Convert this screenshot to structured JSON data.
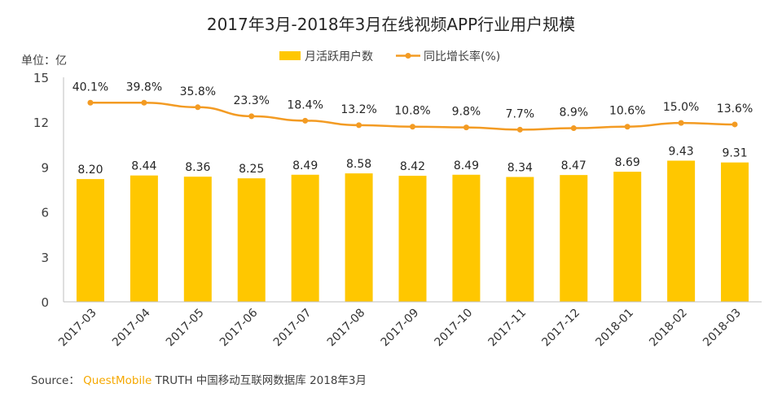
{
  "chart_data": {
    "type": "bar",
    "title": "2017年3月-2018年3月在线视频APP行业用户规模",
    "unit_label": "单位：亿",
    "categories": [
      "2017-03",
      "2017-04",
      "2017-05",
      "2017-06",
      "2017-07",
      "2017-08",
      "2017-09",
      "2017-10",
      "2017-11",
      "2017-12",
      "2018-01",
      "2018-02",
      "2018-03"
    ],
    "y_ticks": [
      "0",
      "3",
      "6",
      "9",
      "12",
      "15"
    ],
    "ylim": [
      0,
      15
    ],
    "grid": false,
    "legend_position": "top-center",
    "series": [
      {
        "name": "月活跃用户数",
        "kind": "bar",
        "color": "#ffc700",
        "values": [
          8.2,
          8.44,
          8.36,
          8.25,
          8.49,
          8.58,
          8.42,
          8.49,
          8.34,
          8.47,
          8.69,
          9.43,
          9.31
        ],
        "labels": [
          "8.20",
          "8.44",
          "8.36",
          "8.25",
          "8.49",
          "8.58",
          "8.42",
          "8.49",
          "8.34",
          "8.47",
          "8.69",
          "9.43",
          "9.31"
        ]
      },
      {
        "name": "同比增长率(%)",
        "kind": "line",
        "color": "#f39b23",
        "plot_values_on_y_scale": [
          13.3,
          13.3,
          13.0,
          12.4,
          12.1,
          11.8,
          11.7,
          11.65,
          11.5,
          11.6,
          11.7,
          11.95,
          11.85
        ],
        "labels": [
          "40.1%",
          "39.8%",
          "35.8%",
          "23.3%",
          "18.4%",
          "13.2%",
          "10.8%",
          "9.8%",
          "7.7%",
          "8.9%",
          "10.6%",
          "15.0%",
          "13.6%"
        ]
      }
    ]
  },
  "source": {
    "prefix": "Source：",
    "brand": "QuestMobile",
    "rest": " TRUTH 中国移动互联网数据库 2018年3月"
  },
  "colors": {
    "bar": "#ffc700",
    "line": "#f39b23",
    "axis": "#bfbfbf",
    "text": "#333333"
  }
}
